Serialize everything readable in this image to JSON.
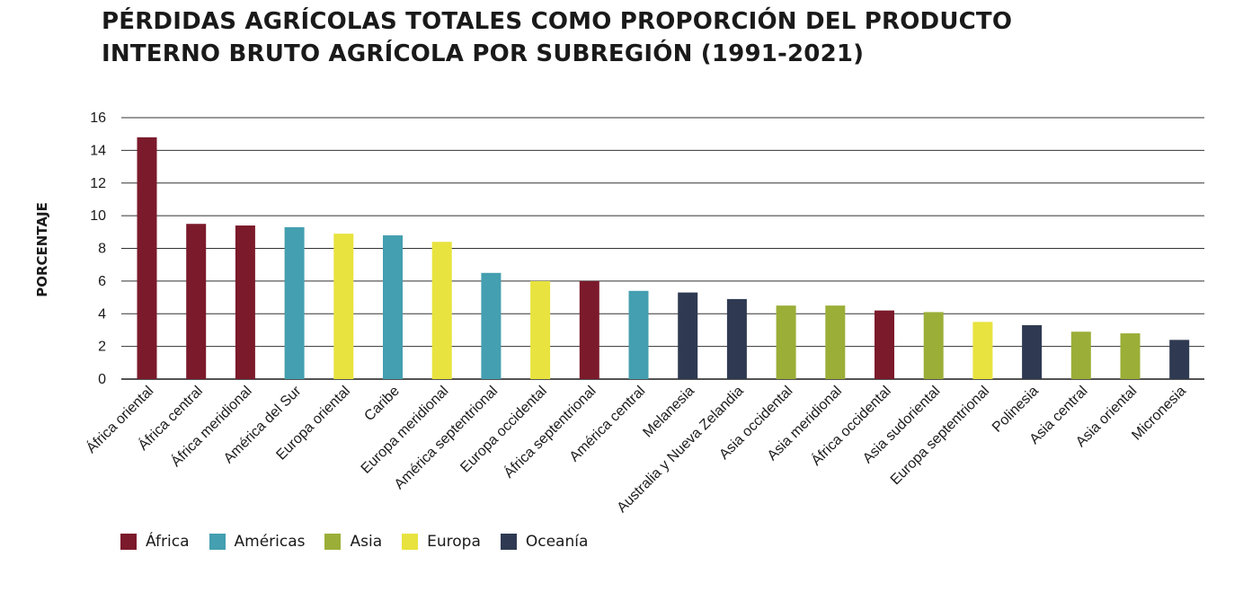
{
  "title": {
    "line1": "PÉRDIDAS AGRÍCOLAS TOTALES COMO PROPORCIÓN DEL PRODUCTO",
    "line2": "INTERNO BRUTO AGRÍCOLA POR SUBREGIÓN (1991-2021)"
  },
  "colors": {
    "Africa": "#7b1a2b",
    "Americas": "#449fb0",
    "Asia": "#9bae37",
    "Europa": "#e8e33e",
    "Oceania": "#2f3a52"
  },
  "chart_data": {
    "type": "bar",
    "ylabel": "PORCENTAJE",
    "xlabel": "",
    "ylim": [
      0,
      16
    ],
    "yticks": [
      0,
      2,
      4,
      6,
      8,
      10,
      12,
      14,
      16
    ],
    "grid": true,
    "categories": [
      "África oriental",
      "África central",
      "África meridional",
      "América del Sur",
      "Europa oriental",
      "Caribe",
      "Europa meridional",
      "América septentrional",
      "Europa occidental",
      "África septentrional",
      "América central",
      "Melanesia",
      "Australia y Nueva Zelandia",
      "Asia occidental",
      "Asia meridional",
      "África occidental",
      "Asia sudoriental",
      "Europa septentrional",
      "Polinesia",
      "Asia central",
      "Asia oriental",
      "Micronesia"
    ],
    "values": [
      14.8,
      9.5,
      9.4,
      9.3,
      8.9,
      8.8,
      8.4,
      6.5,
      6.0,
      6.0,
      5.4,
      5.3,
      4.9,
      4.5,
      4.5,
      4.2,
      4.1,
      3.5,
      3.3,
      2.9,
      2.8,
      2.4
    ],
    "groups": [
      "Africa",
      "Africa",
      "Africa",
      "Americas",
      "Europa",
      "Americas",
      "Europa",
      "Americas",
      "Europa",
      "Africa",
      "Americas",
      "Oceania",
      "Oceania",
      "Asia",
      "Asia",
      "Africa",
      "Asia",
      "Europa",
      "Oceania",
      "Asia",
      "Asia",
      "Oceania"
    ],
    "legend": {
      "placement": "bottom-left",
      "entries": [
        {
          "key": "Africa",
          "label": "África"
        },
        {
          "key": "Americas",
          "label": "Américas"
        },
        {
          "key": "Asia",
          "label": "Asia"
        },
        {
          "key": "Europa",
          "label": "Europa"
        },
        {
          "key": "Oceania",
          "label": "Oceanía"
        }
      ]
    }
  }
}
